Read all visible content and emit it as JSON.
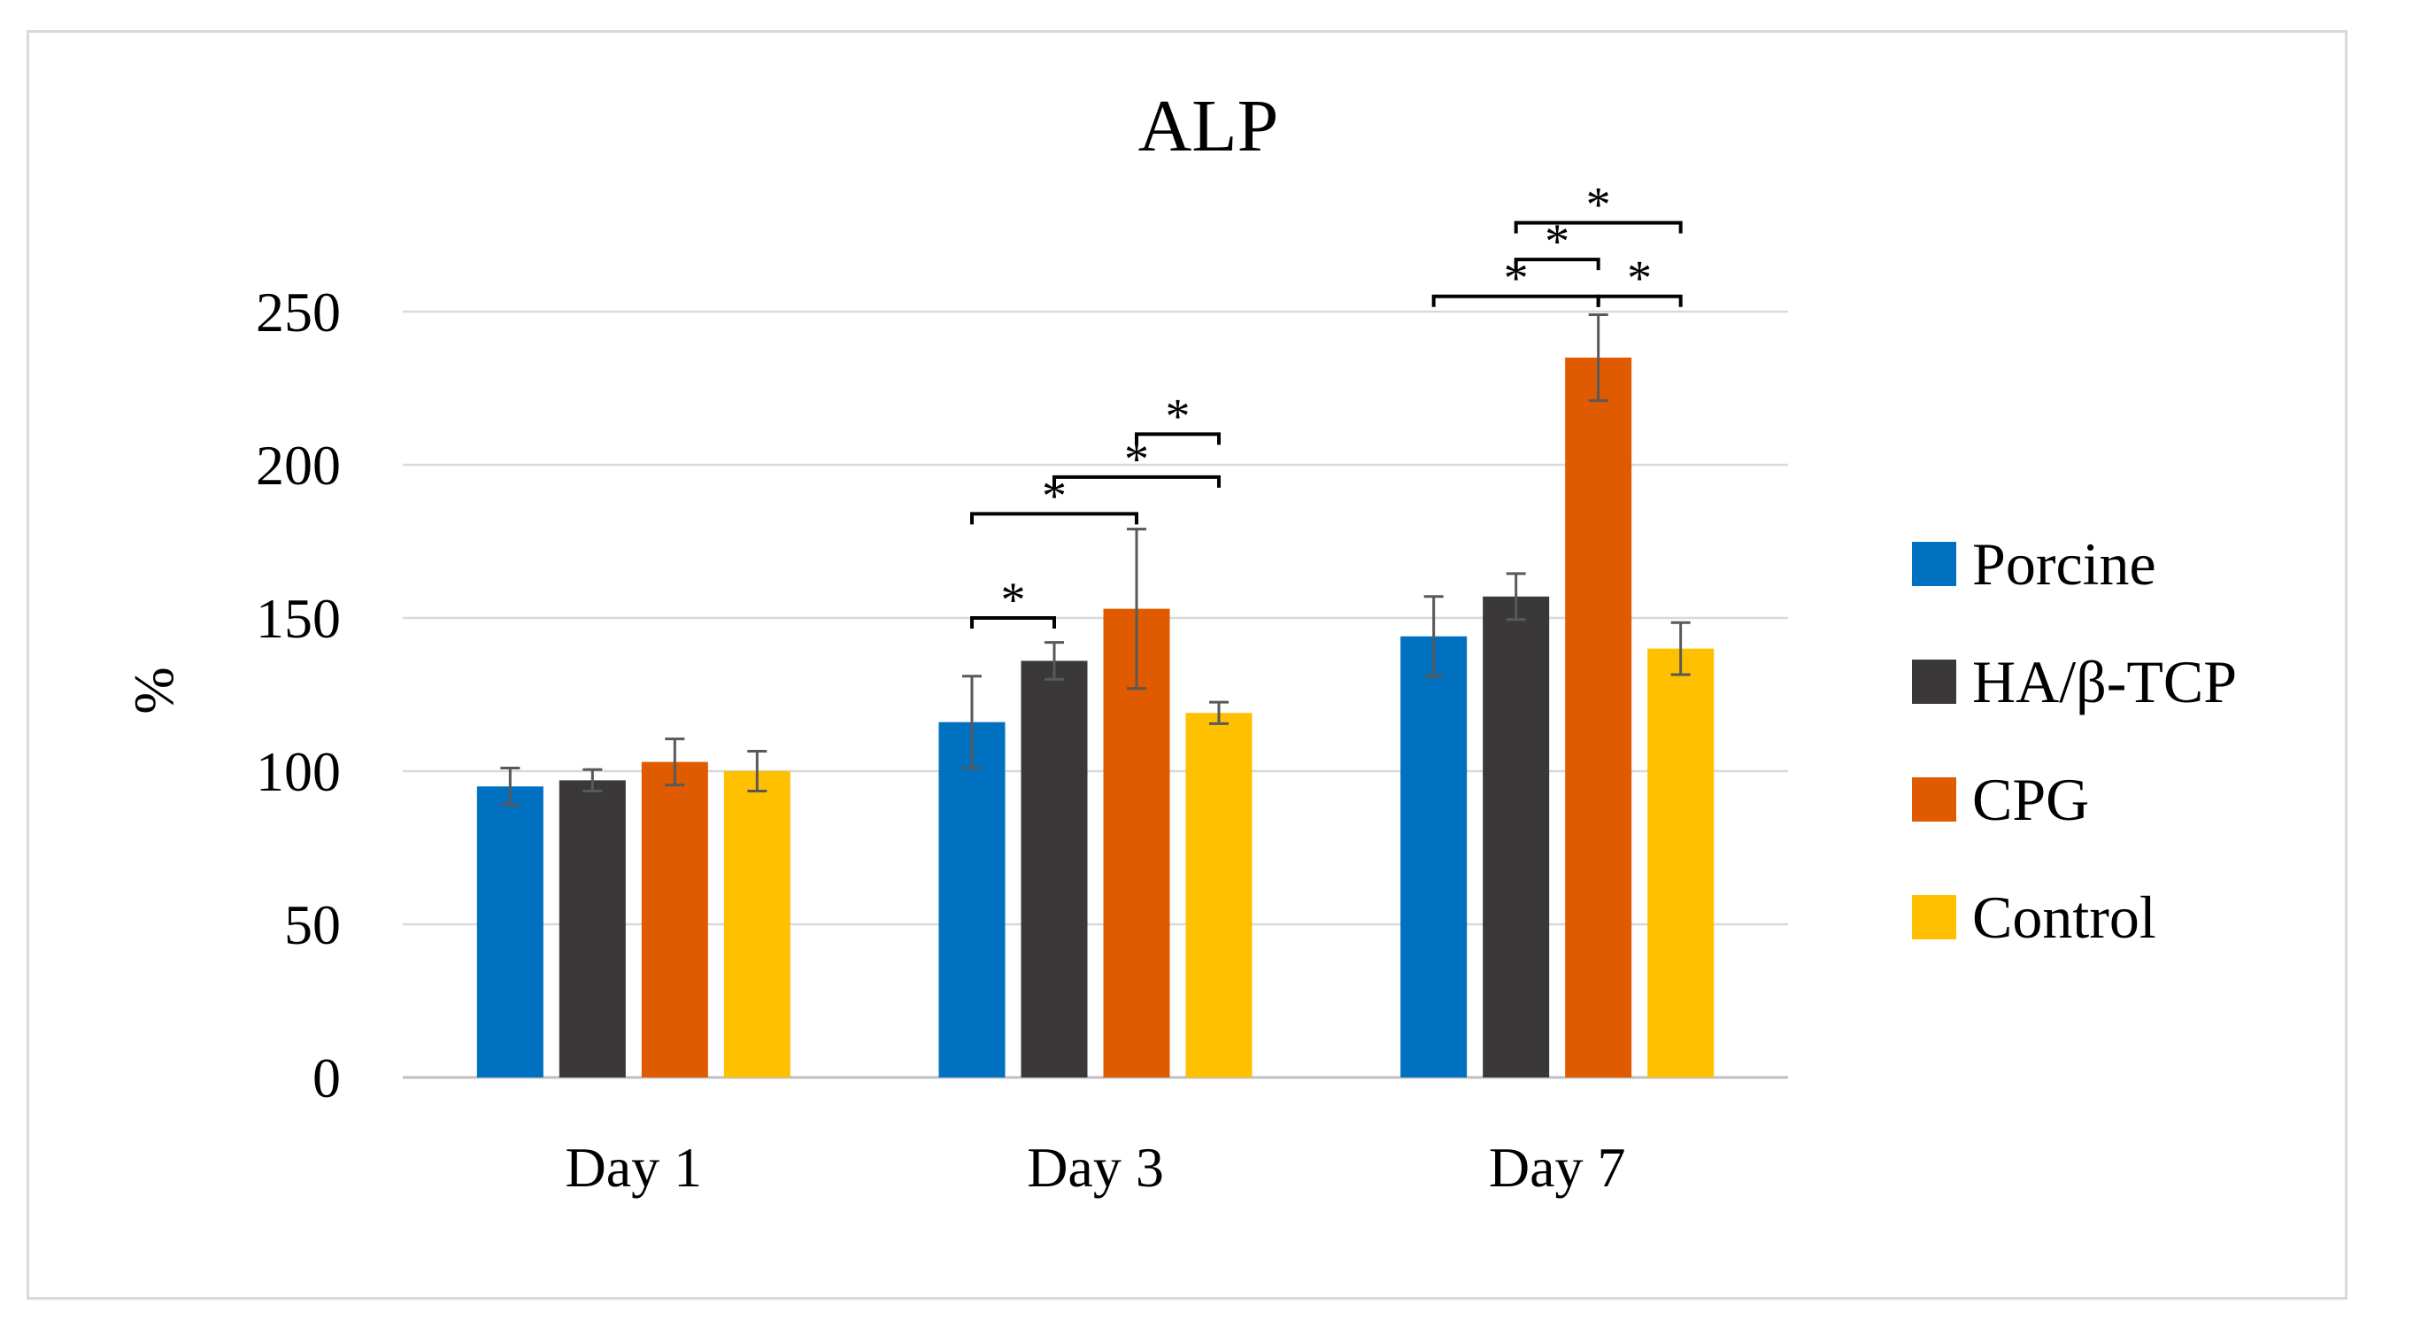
{
  "chart_data": {
    "type": "bar",
    "title": "ALP",
    "xlabel": "",
    "ylabel": "%",
    "ylim": [
      0,
      250
    ],
    "yticks": [
      0,
      50,
      100,
      150,
      200,
      250
    ],
    "grid": true,
    "legend_position": "right",
    "categories": [
      "Day 1",
      "Day 3",
      "Day 7"
    ],
    "series": [
      {
        "name": "Porcine",
        "color": "#0070c0",
        "values": [
          95,
          116,
          144
        ],
        "errors": [
          6,
          15,
          13
        ]
      },
      {
        "name": "HA/β-TCP",
        "color": "#3a3838",
        "values": [
          97,
          136,
          157
        ],
        "errors": [
          3.5,
          6,
          7.5
        ]
      },
      {
        "name": "CPG",
        "color": "#e05a00",
        "values": [
          103,
          153,
          235
        ],
        "errors": [
          7.5,
          26,
          14
        ]
      },
      {
        "name": "Control",
        "color": "#ffc000",
        "values": [
          100,
          119,
          140
        ],
        "errors": [
          6.5,
          3.5,
          8.5
        ]
      }
    ],
    "significance": [
      {
        "category": "Day 3",
        "from": "Porcine",
        "to": "HA/β-TCP",
        "level": 150,
        "label": "*"
      },
      {
        "category": "Day 3",
        "from": "Porcine",
        "to": "CPG",
        "level": 184,
        "label": "*"
      },
      {
        "category": "Day 3",
        "from": "HA/β-TCP",
        "to": "Control",
        "level": 196,
        "label": "*"
      },
      {
        "category": "Day 3",
        "from": "CPG",
        "to": "Control",
        "level": 210,
        "label": "*"
      },
      {
        "category": "Day 7",
        "from": "Porcine",
        "to": "CPG",
        "level": 255,
        "label": "*"
      },
      {
        "category": "Day 7",
        "from": "CPG",
        "to": "Control",
        "level": 255,
        "label": "*"
      },
      {
        "category": "Day 7",
        "from": "HA/β-TCP",
        "to": "CPG",
        "level": 267,
        "label": "*"
      },
      {
        "category": "Day 7",
        "from": "HA/β-TCP",
        "to": "Control",
        "level": 279,
        "label": "*"
      }
    ]
  }
}
